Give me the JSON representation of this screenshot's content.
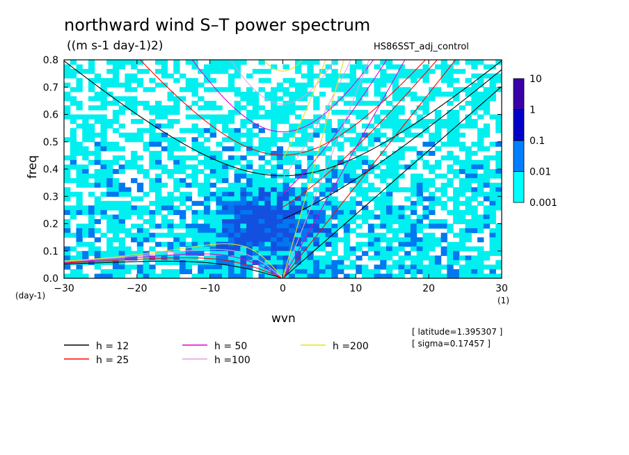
{
  "figure": {
    "title": "northward wind S–T power spectrum",
    "units": "((m s-1 day-1)2)",
    "case": "HS86SST_adj_control",
    "info_latitude": "[ latitude=1.395307 ]",
    "info_sigma": "[ sigma=0.17457 ]"
  },
  "chart_data": {
    "type": "heatmap",
    "title": "northward wind S–T power spectrum",
    "xlabel": "wvn",
    "ylabel": "freq",
    "x_unit": "(1)",
    "y_unit": "(day-1)",
    "xlim": [
      -30,
      30
    ],
    "ylim": [
      0,
      0.8
    ],
    "x_ticks": [
      -30,
      -20,
      -10,
      0,
      10,
      20,
      30
    ],
    "x_tick_labels": [
      "−30",
      "−20",
      "−10",
      "0",
      "10",
      "20",
      "30"
    ],
    "y_ticks": [
      0,
      0.1,
      0.2,
      0.3,
      0.4,
      0.5,
      0.6,
      0.7,
      0.8
    ],
    "y_tick_labels": [
      "0.0",
      "0.1",
      "0.2",
      "0.3",
      "0.4",
      "0.5",
      "0.6",
      "0.7",
      "0.8"
    ],
    "colorbar": {
      "levels": [
        "0.001",
        "0.01",
        "0.1",
        "1",
        "10"
      ],
      "colors": [
        "#00ffff",
        "#0080ff",
        "#0000c8",
        "#3a00a8"
      ]
    },
    "field_colors": {
      "background": "#ffffff",
      "low": "#00f0f0",
      "mid": "#0078f0",
      "high": "#1450e0"
    },
    "dispersion_curves": [
      {
        "label": "h = 12",
        "h": 12,
        "color": "#000000"
      },
      {
        "label": "h = 25",
        "h": 25,
        "color": "#ff0000"
      },
      {
        "label": "h = 50",
        "h": 50,
        "color": "#e000d0"
      },
      {
        "label": "h =100",
        "h": 100,
        "color": "#e0a0e0"
      },
      {
        "label": "h =200",
        "h": 200,
        "color": "#e8e020"
      }
    ]
  }
}
